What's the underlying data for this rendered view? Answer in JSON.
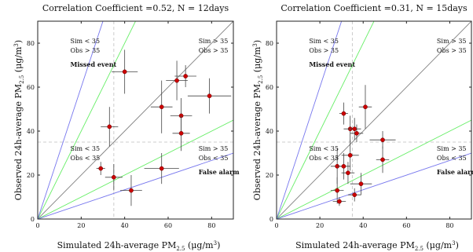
{
  "chart_data": [
    {
      "type": "scatter",
      "title": "Correlation Coefficient =0.52, N = 12days",
      "xlabel": "Simulated 24h-average PM2.5 (μg/m3)",
      "ylabel": "Observed 24h-average PM2.5 (μg/m3)",
      "xlim": [
        0,
        90
      ],
      "ylim": [
        0,
        90
      ],
      "xticks": [
        "0",
        "20",
        "40",
        "60",
        "80"
      ],
      "yticks": [
        "0",
        "20",
        "40",
        "60",
        "80"
      ],
      "threshold": 35,
      "reference_lines": [
        {
          "slope": 1,
          "color": "#808080"
        },
        {
          "slope": 2,
          "color": "#66ee66"
        },
        {
          "slope": 0.5,
          "color": "#66ee66"
        },
        {
          "slope": 3,
          "color": "#7777ee"
        },
        {
          "slope": 0.333,
          "color": "#7777ee"
        }
      ],
      "annotations": [
        {
          "lines": [
            "Sim < 35",
            "Obs > 35"
          ],
          "bold": "Missed event",
          "quadrant": "top-left"
        },
        {
          "lines": [
            "Sim > 35",
            "Obs > 35"
          ],
          "bold": "",
          "quadrant": "top-right"
        },
        {
          "lines": [
            "Sim < 35",
            "Obs < 35"
          ],
          "bold": "",
          "quadrant": "bottom-left"
        },
        {
          "lines": [
            "Sim > 35",
            "Obs < 35"
          ],
          "bold": "False alarm",
          "quadrant": "bottom-right"
        }
      ],
      "points": [
        {
          "x": 40,
          "y": 67,
          "xerr": 6,
          "yerr": 10
        },
        {
          "x": 64,
          "y": 63,
          "xerr": 5,
          "yerr": 9
        },
        {
          "x": 68,
          "y": 65,
          "xerr": 5,
          "yerr": 5
        },
        {
          "x": 79,
          "y": 56,
          "xerr": 10,
          "yerr": 8
        },
        {
          "x": 57,
          "y": 51,
          "xerr": 5,
          "yerr": 12
        },
        {
          "x": 66,
          "y": 47,
          "xerr": 5,
          "yerr": 8
        },
        {
          "x": 66,
          "y": 39,
          "xerr": 4,
          "yerr": 8
        },
        {
          "x": 33,
          "y": 42,
          "xerr": 4,
          "yerr": 9
        },
        {
          "x": 29,
          "y": 23,
          "xerr": 2,
          "yerr": 3
        },
        {
          "x": 35,
          "y": 19,
          "xerr": 4,
          "yerr": 6
        },
        {
          "x": 43,
          "y": 13,
          "xerr": 5,
          "yerr": 7
        },
        {
          "x": 57,
          "y": 23,
          "xerr": 8,
          "yerr": 7
        }
      ]
    },
    {
      "type": "scatter",
      "title": "Correlation Coefficient =0.31, N = 15days",
      "xlabel": "Simulated 24h-average PM2.5 (μg/m3)",
      "ylabel": "Observed 24h-average PM2.5 (μg/m3)",
      "xlim": [
        0,
        90
      ],
      "ylim": [
        0,
        90
      ],
      "xticks": [
        "0",
        "20",
        "40",
        "60",
        "80"
      ],
      "yticks": [
        "0",
        "20",
        "40",
        "60",
        "80"
      ],
      "threshold": 35,
      "reference_lines": [
        {
          "slope": 1,
          "color": "#808080"
        },
        {
          "slope": 2,
          "color": "#66ee66"
        },
        {
          "slope": 0.5,
          "color": "#66ee66"
        },
        {
          "slope": 3,
          "color": "#7777ee"
        },
        {
          "slope": 0.333,
          "color": "#7777ee"
        }
      ],
      "annotations": [
        {
          "lines": [
            "Sim < 35",
            "Obs > 35"
          ],
          "bold": "Missed event",
          "quadrant": "top-left"
        },
        {
          "lines": [
            "Sim > 35",
            "Obs > 35"
          ],
          "bold": "",
          "quadrant": "top-right"
        },
        {
          "lines": [
            "Sim < 35",
            "Obs < 35"
          ],
          "bold": "",
          "quadrant": "bottom-left"
        },
        {
          "lines": [
            "Sim > 35",
            "Obs < 35"
          ],
          "bold": "False alarm",
          "quadrant": "bottom-right"
        }
      ],
      "points": [
        {
          "x": 31,
          "y": 48,
          "xerr": 2,
          "yerr": 5
        },
        {
          "x": 41,
          "y": 51,
          "xerr": 3,
          "yerr": 10
        },
        {
          "x": 34,
          "y": 41,
          "xerr": 3,
          "yerr": 6
        },
        {
          "x": 36,
          "y": 41,
          "xerr": 3,
          "yerr": 5
        },
        {
          "x": 37,
          "y": 39,
          "xerr": 3,
          "yerr": 4
        },
        {
          "x": 34,
          "y": 29,
          "xerr": 4,
          "yerr": 7
        },
        {
          "x": 49,
          "y": 36,
          "xerr": 6,
          "yerr": 4
        },
        {
          "x": 28,
          "y": 24,
          "xerr": 3,
          "yerr": 8
        },
        {
          "x": 31,
          "y": 24,
          "xerr": 3,
          "yerr": 6
        },
        {
          "x": 33,
          "y": 21,
          "xerr": 3,
          "yerr": 5
        },
        {
          "x": 49,
          "y": 27,
          "xerr": 3,
          "yerr": 6
        },
        {
          "x": 39,
          "y": 16,
          "xerr": 5,
          "yerr": 5
        },
        {
          "x": 28,
          "y": 13,
          "xerr": 3,
          "yerr": 6
        },
        {
          "x": 29,
          "y": 8,
          "xerr": 3,
          "yerr": 2
        },
        {
          "x": 36,
          "y": 11,
          "xerr": 3,
          "yerr": 3
        }
      ]
    }
  ]
}
